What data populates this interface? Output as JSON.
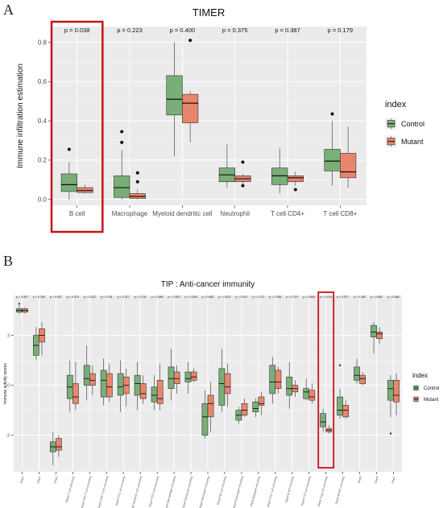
{
  "panels": {
    "a": "A",
    "b": "B"
  },
  "colors": {
    "control": "#79AE78",
    "mutant": "#E9856D",
    "panel_bg": "#EBEBEB",
    "highlight": "#C4141C"
  },
  "chart_data": [
    {
      "type": "boxplot",
      "title": "TIMER",
      "ylabel": "Immune infiltration estimation",
      "ylim": [
        -0.03,
        0.88
      ],
      "yticks": [
        "0.0",
        "0.2",
        "0.4",
        "0.6",
        "0.8"
      ],
      "ytick_values": [
        0,
        0.2,
        0.4,
        0.6,
        0.8
      ],
      "grid": true,
      "legend": {
        "title": "index",
        "entries": [
          "Control",
          "Mutant"
        ],
        "position": "right"
      },
      "highlight_category": "B cell",
      "categories": [
        "B cell",
        "Macrophage",
        "Myeloid dendritic cell",
        "Neutrophil",
        "T cell CD4+",
        "T cell CD8+"
      ],
      "pvalues": [
        "p = 0.038",
        "p = 0.223",
        "p = 0.400",
        "p = 0.375",
        "p = 0.387",
        "p = 0.179"
      ],
      "series": [
        {
          "name": "Control",
          "boxes": [
            {
              "min": 0.0,
              "q1": 0.04,
              "median": 0.075,
              "q3": 0.13,
              "max": 0.19,
              "outliers": [
                0.255
              ]
            },
            {
              "min": 0.0,
              "q1": 0.01,
              "median": 0.06,
              "q3": 0.12,
              "max": 0.25,
              "outliers": [
                0.29,
                0.345
              ]
            },
            {
              "min": 0.22,
              "q1": 0.43,
              "median": 0.51,
              "q3": 0.63,
              "max": 0.8,
              "outliers": []
            },
            {
              "min": 0.06,
              "q1": 0.09,
              "median": 0.125,
              "q3": 0.16,
              "max": 0.28,
              "outliers": []
            },
            {
              "min": 0.03,
              "q1": 0.075,
              "median": 0.12,
              "q3": 0.16,
              "max": 0.26,
              "outliers": []
            },
            {
              "min": 0.07,
              "q1": 0.145,
              "median": 0.195,
              "q3": 0.255,
              "max": 0.4,
              "outliers": [
                0.435
              ]
            }
          ]
        },
        {
          "name": "Mutant",
          "boxes": [
            {
              "min": 0.03,
              "q1": 0.035,
              "median": 0.045,
              "q3": 0.06,
              "max": 0.075,
              "outliers": []
            },
            {
              "min": 0.0,
              "q1": 0.005,
              "median": 0.015,
              "q3": 0.03,
              "max": 0.05,
              "outliers": [
                0.09,
                0.135
              ]
            },
            {
              "min": 0.29,
              "q1": 0.39,
              "median": 0.49,
              "q3": 0.535,
              "max": 0.55,
              "outliers": [
                0.81
              ]
            },
            {
              "min": 0.08,
              "q1": 0.09,
              "median": 0.105,
              "q3": 0.12,
              "max": 0.13,
              "outliers": [
                0.07,
                0.19
              ]
            },
            {
              "min": 0.07,
              "q1": 0.09,
              "median": 0.11,
              "q3": 0.12,
              "max": 0.14,
              "outliers": [
                0.05
              ]
            },
            {
              "min": 0.06,
              "q1": 0.11,
              "median": 0.14,
              "q3": 0.235,
              "max": 0.37,
              "outliers": []
            }
          ]
        }
      ]
    },
    {
      "type": "boxplot",
      "title": "TIP : Anti-cancer immunity",
      "ylabel": "Immune activity scores",
      "ylim": [
        -5.2,
        5.4
      ],
      "yticks": [
        "-3",
        "0",
        "3"
      ],
      "ytick_values": [
        -3,
        0,
        3
      ],
      "grid": true,
      "legend": {
        "title": "index",
        "entries": [
          "Control",
          "Mutant"
        ],
        "position": "right"
      },
      "highlight_category": "Step4 Treg cell recruiting",
      "categories": [
        "Step1",
        "Step2",
        "Step3",
        "Step4 T cell recruiting",
        "Step4 CD4 T cell recruiting",
        "Step4 CD8 T cell recruiting",
        "Step4 Th1 cell recruiting",
        "Step4 Dendritic cell recruiting",
        "Step4 Th22 cell recruiting",
        "Step4 Macrophage recruiting",
        "Step4 Monocyte recruiting",
        "Step4 Neutrophil recruiting",
        "Step4 NK cell recruiting",
        "Step4 Eosinophil recruiting",
        "Step4 Basophil recruiting",
        "Step4 Th17 cell recruiting",
        "Step4 B cell recruiting",
        "Step4 Th2 cell recruiting",
        "Step4 Treg cell recruiting",
        "Step4 MDSC recruiting",
        "Step5",
        "Step6",
        "Step7"
      ],
      "pvalues": [
        "p = 0.947",
        "p = 0.105",
        "p = 0.937",
        "p = 0.375",
        "p = 0.322",
        "p = 0.741",
        "p = 0.317",
        "p = 0.741",
        "p = 0.580",
        "p = 0.503",
        "p = 0.426",
        "p = 0.861",
        "p = 0.873",
        "p = 0.207",
        "p = 0.172",
        "p = 0.256",
        "p = 0.797",
        "p = 0.884",
        "p = 0.013",
        "p = 0.577",
        "p = 0.363",
        "p = 0.852",
        "p = 0.460"
      ],
      "series": [
        {
          "name": "Control",
          "boxes": [
            {
              "min": 4.3,
              "q1": 4.4,
              "median": 4.5,
              "q3": 4.6,
              "max": 4.8,
              "outliers": [
                4.9
              ]
            },
            {
              "min": 1.5,
              "q1": 1.8,
              "median": 2.4,
              "q3": 3.0,
              "max": 3.5,
              "outliers": []
            },
            {
              "min": -4.8,
              "q1": -4.0,
              "median": -3.7,
              "q3": -3.4,
              "max": -2.8,
              "outliers": []
            },
            {
              "min": -1.6,
              "q1": -0.8,
              "median": -0.1,
              "q3": 0.6,
              "max": 1.5,
              "outliers": []
            },
            {
              "min": -0.9,
              "q1": 0.0,
              "median": 0.4,
              "q3": 1.2,
              "max": 2.4,
              "outliers": []
            },
            {
              "min": -1.2,
              "q1": -0.7,
              "median": 0.3,
              "q3": 0.9,
              "max": 1.6,
              "outliers": []
            },
            {
              "min": -1.6,
              "q1": -0.6,
              "median": -0.1,
              "q3": 0.7,
              "max": 1.5,
              "outliers": []
            },
            {
              "min": -1.5,
              "q1": -0.6,
              "median": 0.1,
              "q3": 0.6,
              "max": 1.4,
              "outliers": []
            },
            {
              "min": -1.5,
              "q1": -1.0,
              "median": -0.6,
              "q3": -0.1,
              "max": 0.6,
              "outliers": []
            },
            {
              "min": -0.9,
              "q1": -0.2,
              "median": 0.4,
              "q3": 1.1,
              "max": 2.2,
              "outliers": []
            },
            {
              "min": -0.5,
              "q1": 0.2,
              "median": 0.4,
              "q3": 0.8,
              "max": 1.4,
              "outliers": []
            },
            {
              "min": -3.2,
              "q1": -3.0,
              "median": -1.9,
              "q3": -1.1,
              "max": -0.3,
              "outliers": []
            },
            {
              "min": -1.6,
              "q1": -1.2,
              "median": 0.1,
              "q3": 1.0,
              "max": 2.2,
              "outliers": []
            },
            {
              "min": -2.3,
              "q1": -2.1,
              "median": -1.8,
              "q3": -1.5,
              "max": -1.3,
              "outliers": []
            },
            {
              "min": -1.9,
              "q1": -1.6,
              "median": -1.4,
              "q3": -1.0,
              "max": -0.8,
              "outliers": []
            },
            {
              "min": -1.1,
              "q1": -0.5,
              "median": 0.2,
              "q3": 1.2,
              "max": 1.7,
              "outliers": []
            },
            {
              "min": -1.4,
              "q1": -0.6,
              "median": -0.2,
              "q3": 0.5,
              "max": 1.4,
              "outliers": []
            },
            {
              "min": -0.9,
              "q1": -0.8,
              "median": -0.4,
              "q3": -0.2,
              "max": 0.4,
              "outliers": []
            },
            {
              "min": -2.8,
              "q1": -2.5,
              "median": -2.2,
              "q3": -1.7,
              "max": -1.4,
              "outliers": []
            },
            {
              "min": -2.0,
              "q1": -1.8,
              "median": -1.5,
              "q3": -0.7,
              "max": -0.2,
              "outliers": [
                1.2
              ]
            },
            {
              "min": 0.1,
              "q1": 0.3,
              "median": 0.6,
              "q3": 1.1,
              "max": 1.6,
              "outliers": []
            },
            {
              "min": 1.9,
              "q1": 2.9,
              "median": 3.2,
              "q3": 3.6,
              "max": 3.8,
              "outliers": []
            },
            {
              "min": -1.9,
              "q1": -0.9,
              "median": -0.2,
              "q3": 0.3,
              "max": 0.6,
              "outliers": [
                -2.9
              ]
            }
          ]
        },
        {
          "name": "Mutant",
          "boxes": [
            {
              "min": 4.3,
              "q1": 4.4,
              "median": 4.5,
              "q3": 4.6,
              "max": 4.7,
              "outliers": []
            },
            {
              "min": 1.8,
              "q1": 2.6,
              "median": 3.0,
              "q3": 3.4,
              "max": 3.8,
              "outliers": []
            },
            {
              "min": -4.3,
              "q1": -3.9,
              "median": -3.7,
              "q3": -3.2,
              "max": -3.0,
              "outliers": []
            },
            {
              "min": -1.5,
              "q1": -1.1,
              "median": -0.7,
              "q3": 0.1,
              "max": 1.4,
              "outliers": []
            },
            {
              "min": -0.6,
              "q1": 0.0,
              "median": 0.3,
              "q3": 0.7,
              "max": 1.2,
              "outliers": []
            },
            {
              "min": -1.0,
              "q1": -0.7,
              "median": -0.1,
              "q3": 0.7,
              "max": 1.3,
              "outliers": []
            },
            {
              "min": -1.3,
              "q1": -0.5,
              "median": 0.0,
              "q3": 0.5,
              "max": 1.0,
              "outliers": []
            },
            {
              "min": -1.1,
              "q1": -0.8,
              "median": -0.5,
              "q3": 0.1,
              "max": 0.6,
              "outliers": []
            },
            {
              "min": -1.5,
              "q1": -1.1,
              "median": -0.8,
              "q3": 0.3,
              "max": 1.3,
              "outliers": []
            },
            {
              "min": -0.5,
              "q1": 0.1,
              "median": 0.4,
              "q3": 0.8,
              "max": 1.2,
              "outliers": []
            },
            {
              "min": 0.2,
              "q1": 0.3,
              "median": 0.5,
              "q3": 0.8,
              "max": 1.0,
              "outliers": []
            },
            {
              "min": -2.8,
              "q1": -1.9,
              "median": -1.1,
              "q3": -0.6,
              "max": 0.2,
              "outliers": []
            },
            {
              "min": -1.3,
              "q1": -0.5,
              "median": -0.1,
              "q3": 0.7,
              "max": 1.3,
              "outliers": []
            },
            {
              "min": -1.9,
              "q1": -1.8,
              "median": -1.5,
              "q3": -1.1,
              "max": -0.8,
              "outliers": []
            },
            {
              "min": -1.8,
              "q1": -1.2,
              "median": -1.1,
              "q3": -0.7,
              "max": -0.4,
              "outliers": []
            },
            {
              "min": -0.5,
              "q1": -0.2,
              "median": 0.2,
              "q3": 0.9,
              "max": 1.1,
              "outliers": []
            },
            {
              "min": -0.7,
              "q1": -0.4,
              "median": -0.2,
              "q3": 0.0,
              "max": 0.3,
              "outliers": []
            },
            {
              "min": -1.1,
              "q1": -0.9,
              "median": -0.7,
              "q3": -0.3,
              "max": 0.1,
              "outliers": []
            },
            {
              "min": -2.9,
              "q1": -2.8,
              "median": -2.7,
              "q3": -2.6,
              "max": -2.4,
              "outliers": []
            },
            {
              "min": -2.0,
              "q1": -1.9,
              "median": -1.5,
              "q3": -1.2,
              "max": -0.9,
              "outliers": []
            },
            {
              "min": 0.0,
              "q1": 0.1,
              "median": 0.4,
              "q3": 0.6,
              "max": 0.8,
              "outliers": []
            },
            {
              "min": 2.5,
              "q1": 2.8,
              "median": 3.1,
              "q3": 3.2,
              "max": 3.5,
              "outliers": []
            },
            {
              "min": -1.8,
              "q1": -1.0,
              "median": -0.6,
              "q3": 0.3,
              "max": 0.7,
              "outliers": []
            }
          ]
        }
      ]
    }
  ]
}
